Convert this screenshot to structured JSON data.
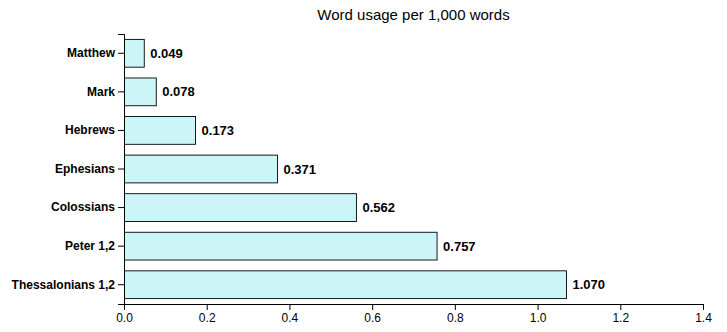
{
  "chart_data": {
    "type": "bar",
    "orientation": "horizontal",
    "title": "Word usage per 1,000 words",
    "categories": [
      "Matthew",
      "Mark",
      "Hebrews",
      "Ephesians",
      "Colossians",
      "Peter 1,2",
      "Thessalonians 1,2"
    ],
    "values": [
      0.049,
      0.078,
      0.173,
      0.371,
      0.562,
      0.757,
      1.07
    ],
    "value_labels": [
      "0.049",
      "0.078",
      "0.173",
      "0.371",
      "0.562",
      "0.757",
      "1.070"
    ],
    "data_labels": true,
    "color": "#ccf5f7",
    "xlim": [
      0.0,
      1.4
    ],
    "xticks": [
      {
        "value": 0.0,
        "label": "0.0"
      },
      0.2,
      0.4,
      0.6,
      0.8,
      {
        "value": 1.0,
        "label": "1.0"
      },
      1.2,
      1.4
    ],
    "grid": false
  }
}
